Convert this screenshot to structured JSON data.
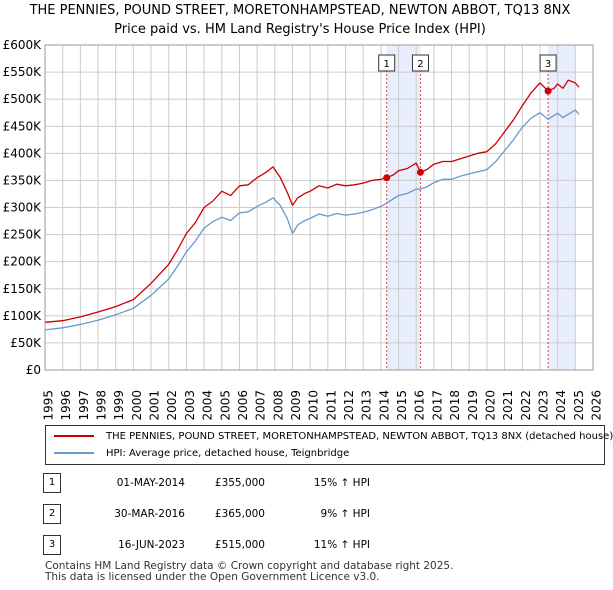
{
  "chart_data": {
    "type": "line",
    "title": "THE PENNIES, POUND STREET, MORETONHAMPSTEAD, NEWTON ABBOT, TQ13 8NX",
    "subtitle": "Price paid vs. HM Land Registry's House Price Index (HPI)",
    "ylim": [
      0,
      600000
    ],
    "xlim": [
      1995,
      2026
    ],
    "y_ticks": [
      0,
      50000,
      100000,
      150000,
      200000,
      250000,
      300000,
      350000,
      400000,
      450000,
      500000,
      550000,
      600000
    ],
    "y_tick_labels": [
      "£0",
      "£50K",
      "£100K",
      "£150K",
      "£200K",
      "£250K",
      "£300K",
      "£350K",
      "£400K",
      "£450K",
      "£500K",
      "£550K",
      "£600K"
    ],
    "x_ticks": [
      "1995",
      "1996",
      "1997",
      "1998",
      "1999",
      "2000",
      "2001",
      "2002",
      "2003",
      "2004",
      "2005",
      "2006",
      "2007",
      "2008",
      "2009",
      "2010",
      "2011",
      "2012",
      "2013",
      "2014",
      "2015",
      "2016",
      "2017",
      "2018",
      "2019",
      "2020",
      "2021",
      "2022",
      "2023",
      "2024",
      "2025",
      "2026"
    ],
    "grid": true,
    "series": [
      {
        "name": "THE PENNIES, POUND STREET, MORETONHAMPSTEAD, NEWTON ABBOT, TQ13 8NX (detached house)",
        "color": "#cc0000",
        "x": [
          1995,
          1996,
          1997,
          1998,
          1999,
          2000,
          2001,
          2002,
          2002.5,
          2003,
          2003.5,
          2004,
          2004.5,
          2005,
          2005.5,
          2006,
          2006.5,
          2007,
          2007.5,
          2007.9,
          2008.3,
          2008.7,
          2009,
          2009.3,
          2009.7,
          2010,
          2010.5,
          2011,
          2011.5,
          2012,
          2012.5,
          2013,
          2013.5,
          2014,
          2014.33,
          2014.7,
          2015,
          2015.5,
          2016,
          2016.24,
          2016.6,
          2017,
          2017.5,
          2018,
          2018.5,
          2019,
          2019.5,
          2020,
          2020.5,
          2021,
          2021.5,
          2022,
          2022.5,
          2023,
          2023.46,
          2023.8,
          2024,
          2024.3,
          2024.6,
          2025,
          2025.2
        ],
        "values": [
          88000,
          91000,
          98000,
          107000,
          117000,
          130000,
          160000,
          195000,
          222000,
          252000,
          272000,
          300000,
          312000,
          330000,
          322000,
          340000,
          342000,
          355000,
          365000,
          375000,
          356000,
          328000,
          304000,
          318000,
          326000,
          330000,
          340000,
          336000,
          343000,
          340000,
          342000,
          345000,
          350000,
          352000,
          355000,
          360000,
          368000,
          372000,
          382000,
          365000,
          370000,
          380000,
          385000,
          385000,
          390000,
          395000,
          400000,
          403000,
          418000,
          440000,
          462000,
          488000,
          512000,
          530000,
          515000,
          520000,
          528000,
          520000,
          535000,
          530000,
          522000
        ]
      },
      {
        "name": "HPI: Average price, detached house, Teignbridge",
        "color": "#6699cc",
        "x": [
          1995,
          1996,
          1997,
          1998,
          1999,
          2000,
          2001,
          2002,
          2002.5,
          2003,
          2003.5,
          2004,
          2004.5,
          2005,
          2005.5,
          2006,
          2006.5,
          2007,
          2007.5,
          2007.9,
          2008.3,
          2008.7,
          2009,
          2009.3,
          2009.7,
          2010,
          2010.5,
          2011,
          2011.5,
          2012,
          2012.5,
          2013,
          2013.5,
          2014,
          2014.33,
          2014.7,
          2015,
          2015.5,
          2016,
          2016.24,
          2016.6,
          2017,
          2017.5,
          2018,
          2018.5,
          2019,
          2019.5,
          2020,
          2020.5,
          2021,
          2021.5,
          2022,
          2022.5,
          2023,
          2023.46,
          2023.8,
          2024,
          2024.3,
          2024.6,
          2025,
          2025.2
        ],
        "values": [
          74000,
          78000,
          84000,
          92000,
          102000,
          114000,
          138000,
          168000,
          192000,
          218000,
          238000,
          262000,
          274000,
          282000,
          276000,
          290000,
          292000,
          302000,
          310000,
          318000,
          304000,
          280000,
          252000,
          268000,
          276000,
          280000,
          288000,
          284000,
          289000,
          286000,
          288000,
          291000,
          296000,
          302000,
          308000,
          316000,
          322000,
          326000,
          334000,
          334000,
          338000,
          346000,
          352000,
          352000,
          358000,
          362000,
          366000,
          370000,
          385000,
          405000,
          425000,
          448000,
          465000,
          475000,
          463000,
          470000,
          474000,
          466000,
          472000,
          480000,
          472000
        ]
      }
    ],
    "sales": [
      {
        "label": "1",
        "x": 2014.33,
        "value": 355000,
        "date": "01-MAY-2014",
        "price": "£355,000",
        "hpi": "15% ↑ HPI"
      },
      {
        "label": "2",
        "x": 2016.24,
        "value": 365000,
        "date": "30-MAR-2016",
        "price": "£365,000",
        "hpi": "9% ↑ HPI"
      },
      {
        "label": "3",
        "x": 2023.46,
        "value": 515000,
        "date": "16-JUN-2023",
        "price": "£515,000",
        "hpi": "11% ↑ HPI"
      }
    ],
    "highlight_ranges": [
      [
        2014.33,
        2016.24
      ],
      [
        2023.46,
        2025.0
      ]
    ]
  },
  "legend": {
    "red_label": "THE PENNIES, POUND STREET, MORETONHAMPSTEAD, NEWTON ABBOT, TQ13 8NX (detached house)",
    "blue_label": "HPI: Average price, detached house, Teignbridge"
  },
  "footer": {
    "line1": "Contains HM Land Registry data © Crown copyright and database right 2025.",
    "line2": "This data is licensed under the Open Government Licence v3.0."
  },
  "colors": {
    "red": "#cc0000",
    "blue": "#6699cc",
    "highlight": "#e8eefb",
    "grid": "#cccccc"
  }
}
